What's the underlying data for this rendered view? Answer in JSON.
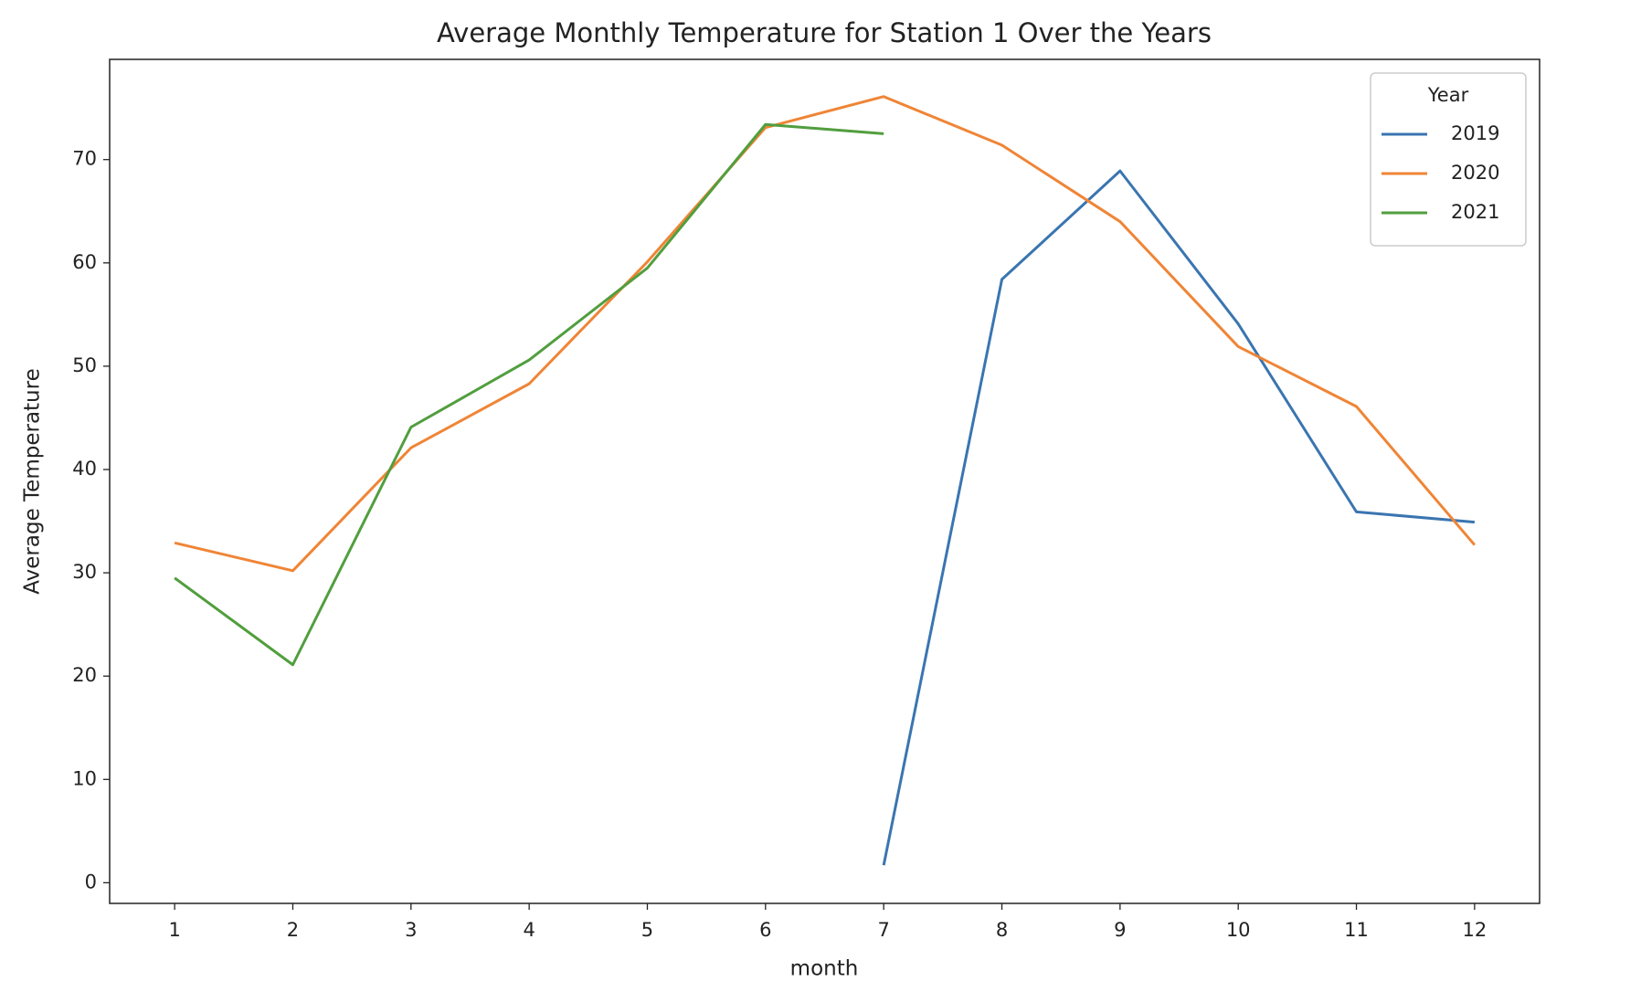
{
  "chart_data": {
    "type": "line",
    "title": "Average Monthly Temperature for Station 1 Over the Years",
    "x_label": "month",
    "y_label": "Average Temperature",
    "x": [
      1,
      2,
      3,
      4,
      5,
      6,
      7,
      8,
      9,
      10,
      11,
      12
    ],
    "series": [
      {
        "name": "2019",
        "color": "#3a75b0",
        "values": [
          null,
          null,
          null,
          null,
          null,
          null,
          1.7,
          58.4,
          68.9,
          54.1,
          35.9,
          34.9
        ]
      },
      {
        "name": "2020",
        "color": "#ef8536",
        "values": [
          32.9,
          30.2,
          42.1,
          48.3,
          60.1,
          73.1,
          76.1,
          71.4,
          64.0,
          51.9,
          46.1,
          32.7
        ]
      },
      {
        "name": "2021",
        "color": "#519e3e",
        "values": [
          29.5,
          21.1,
          44.1,
          50.6,
          59.5,
          73.4,
          72.5,
          null,
          null,
          null,
          null,
          null
        ]
      }
    ],
    "xlim": [
      0.45,
      12.55
    ],
    "xticks": [
      1,
      2,
      3,
      4,
      5,
      6,
      7,
      8,
      9,
      10,
      11,
      12
    ],
    "ylim": [
      -2.0,
      79.7
    ],
    "yticks": [
      0,
      10,
      20,
      30,
      40,
      50,
      60,
      70
    ],
    "grid": false,
    "legend_title": "Year",
    "legend_loc": "upper right"
  }
}
